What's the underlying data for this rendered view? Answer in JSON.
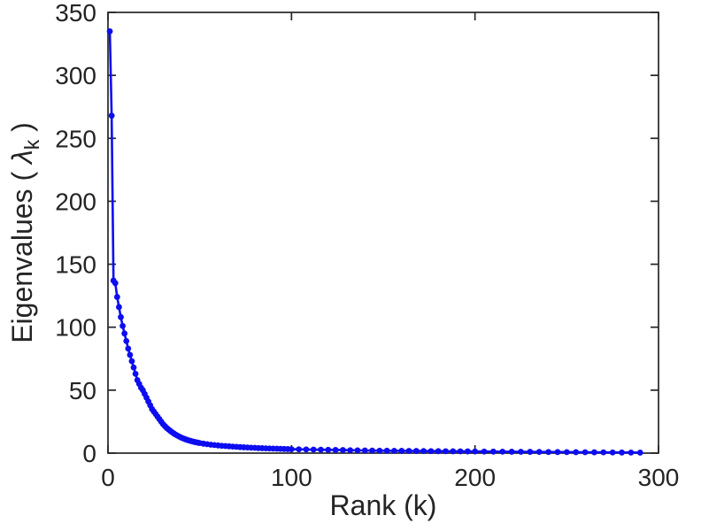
{
  "figure": {
    "background": "#ffffff"
  },
  "chart_data": {
    "type": "line",
    "title": "",
    "xlabel": "Rank (k)",
    "ylabel": "Eigenvalues ( λ_k )",
    "ylabel_parts": {
      "prefix": "Eigenvalues ( ",
      "symbol": "λ",
      "subscript": "k",
      "suffix": " )"
    },
    "xlim": [
      0,
      300
    ],
    "ylim": [
      0,
      350
    ],
    "xticks": [
      0,
      100,
      200,
      300
    ],
    "yticks": [
      0,
      50,
      100,
      150,
      200,
      250,
      300,
      350
    ],
    "grid": false,
    "legend": null,
    "box": true,
    "line_color": "#0d0df0",
    "marker": "circle",
    "marker_radius": 3.4,
    "line_width": 2.6,
    "axis_color": "#262626",
    "series": [
      {
        "name": "eigenvalues",
        "x": [
          1,
          2,
          3,
          4,
          5,
          6,
          7,
          8,
          9,
          10,
          11,
          12,
          13,
          14,
          15,
          16,
          17,
          18,
          19,
          20,
          21,
          22,
          23,
          24,
          25,
          26,
          27,
          28,
          29,
          30,
          31,
          32,
          33,
          34,
          35,
          36,
          37,
          38,
          39,
          40,
          41,
          42,
          43,
          44,
          45,
          46,
          47,
          48,
          49,
          50,
          52,
          54,
          56,
          58,
          60,
          62,
          64,
          66,
          68,
          70,
          72,
          74,
          76,
          78,
          80,
          82,
          84,
          86,
          88,
          90,
          92,
          94,
          96,
          98,
          100,
          104,
          108,
          112,
          116,
          120,
          124,
          128,
          132,
          136,
          140,
          144,
          148,
          152,
          156,
          160,
          164,
          168,
          172,
          176,
          180,
          184,
          188,
          192,
          196,
          200,
          205,
          210,
          215,
          220,
          225,
          230,
          235,
          240,
          245,
          250,
          255,
          260,
          265,
          270,
          275,
          280,
          285,
          290
        ],
        "y": [
          335,
          268,
          137,
          135,
          124,
          116,
          108,
          101,
          95,
          89,
          83,
          78,
          73,
          68,
          63,
          58,
          55,
          52,
          50,
          47,
          44,
          41,
          38,
          35,
          33,
          31,
          29,
          27,
          25,
          23,
          21.5,
          20,
          18.8,
          17.6,
          16.5,
          15.5,
          14.6,
          13.8,
          13.0,
          12.3,
          11.7,
          11.1,
          10.6,
          10.1,
          9.7,
          9.3,
          8.9,
          8.6,
          8.3,
          8.0,
          7.5,
          7.1,
          6.7,
          6.4,
          6.1,
          5.8,
          5.6,
          5.4,
          5.2,
          5.0,
          4.8,
          4.6,
          4.5,
          4.3,
          4.2,
          4.0,
          3.9,
          3.8,
          3.7,
          3.6,
          3.5,
          3.4,
          3.3,
          3.2,
          3.1,
          3.0,
          2.9,
          2.8,
          2.7,
          2.6,
          2.5,
          2.4,
          2.3,
          2.2,
          2.1,
          2.0,
          1.95,
          1.9,
          1.85,
          1.8,
          1.75,
          1.7,
          1.65,
          1.6,
          1.55,
          1.5,
          1.45,
          1.4,
          1.35,
          1.3,
          1.25,
          1.2,
          1.15,
          1.1,
          1.05,
          1.0,
          0.95,
          0.9,
          0.85,
          0.8,
          0.75,
          0.7,
          0.65,
          0.6,
          0.55,
          0.5,
          0.45,
          0.4
        ]
      }
    ]
  }
}
